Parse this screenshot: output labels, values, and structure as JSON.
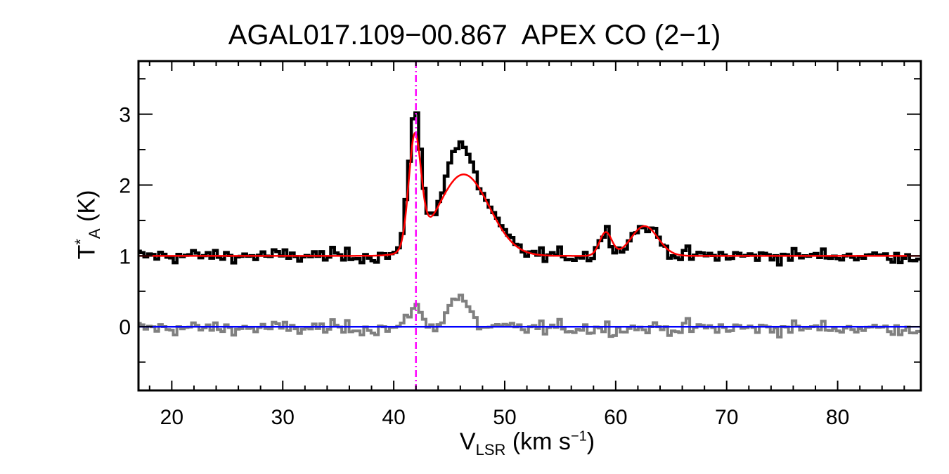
{
  "chart_data": {
    "type": "line",
    "title": "AGAL017.109−00.867  APEX CO (2−1)",
    "xlabel": {
      "main": "V",
      "sub": "LSR",
      "units_pre": " (km s",
      "sup": "−1",
      "units_post": ")"
    },
    "ylabel": {
      "main": "T",
      "sup": "*",
      "sub": "A",
      "units": " (K)"
    },
    "xlim": [
      17,
      87.5
    ],
    "ylim": [
      -0.9,
      3.75
    ],
    "xticks": [
      20,
      30,
      40,
      50,
      60,
      70,
      80
    ],
    "yticks": [
      0,
      1,
      2,
      3
    ],
    "reference_velocity": 42.0,
    "colors": {
      "observed": "#000000",
      "fit": "#ff0000",
      "residual": "#808080",
      "baseline": "#0000ff",
      "reference": "#ff00ff"
    },
    "series": [],
    "fit_model": {
      "baseline": 1.0,
      "components": [
        {
          "center": 41.9,
          "amplitude": 1.55,
          "sigma": 0.55
        },
        {
          "center": 46.3,
          "amplitude": 1.15,
          "sigma": 2.3
        },
        {
          "center": 59.1,
          "amplitude": 0.33,
          "sigma": 0.55
        },
        {
          "center": 62.6,
          "amplitude": 0.42,
          "sigma": 1.2
        }
      ]
    },
    "residual_peaks": [
      {
        "center": 41.9,
        "amplitude": 0.35,
        "sigma": 0.5
      },
      {
        "center": 45.8,
        "amplitude": 0.45,
        "sigma": 0.9
      }
    ],
    "channel_width_kms": 0.33,
    "noise_rms_K": 0.1
  }
}
